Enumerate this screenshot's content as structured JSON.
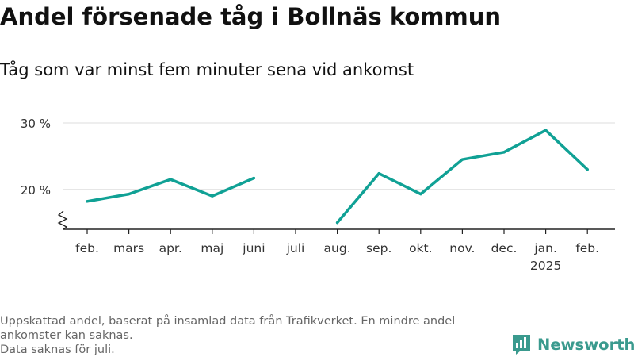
{
  "title": "Andel försenade tåg i Bollnäs kommun",
  "subtitle": "Tåg som var minst fem minuter sena vid ankomst",
  "footnote": [
    "Uppskattad andel, baserat på insamlad data från Trafikverket. En mindre andel ankomster kan saknas.",
    "Data saknas för juli."
  ],
  "brand": {
    "name": "Newsworthy",
    "color": "#3a9a8e"
  },
  "chart_data": {
    "type": "line",
    "categories": [
      "feb.",
      "mars",
      "apr.",
      "maj",
      "juni",
      "juli",
      "aug.",
      "sep.",
      "okt.",
      "nov.",
      "dec.",
      "jan.",
      "feb."
    ],
    "year_labels": {
      "11": "2025"
    },
    "series": [
      {
        "color": "#10a195",
        "values": [
          18.2,
          19.3,
          21.5,
          19.0,
          21.7,
          null,
          15.0,
          22.4,
          19.3,
          24.5,
          25.6,
          28.9,
          23.0
        ]
      }
    ],
    "y_ticks": [
      20,
      30
    ],
    "y_tick_labels": [
      "20 %",
      "30 %"
    ],
    "ylim": [
      14,
      30
    ],
    "axis_break": true,
    "grid": true,
    "xlabel": "",
    "ylabel": ""
  }
}
